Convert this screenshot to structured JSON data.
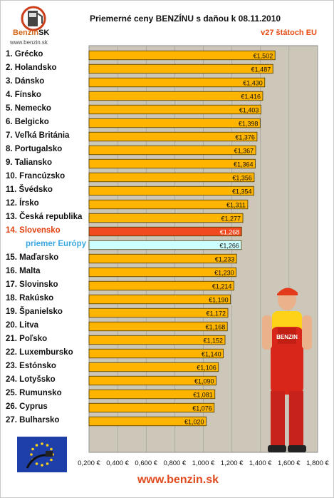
{
  "header": {
    "title": "Priemerné ceny BENZÍNU s daňou k 08.11.2010",
    "subtitle": "v27 štátoch EU",
    "logo_text": "Benzin",
    "logo_suffix": "SK",
    "logo_url": "www.benzin.sk"
  },
  "footer": {
    "url": "www.benzin.sk"
  },
  "colors": {
    "bar": "#ffb400",
    "bar_border": "#4a3a00",
    "highlight_bar": "#f04a1e",
    "average_bar": "#ccffff",
    "plot_bg": "#ccc7b8",
    "highlight_label": "#e2400f",
    "average_label": "#39a7e0"
  },
  "chart_data": {
    "type": "bar",
    "orientation": "horizontal",
    "value_prefix": "€",
    "xlim": [
      0.2,
      1.8
    ],
    "x_ticks": [
      "0,200 €",
      "0,400 €",
      "0,600 €",
      "0,800 €",
      "1,000 €",
      "1,200 €",
      "1,400 €",
      "1,600 €",
      "1,800 €"
    ],
    "grid": "vertical",
    "categories": [
      "1. Grécko",
      "2. Holandsko",
      "3. Dánsko",
      "4. Fínsko",
      "5. Nemecko",
      "6. Belgicko",
      "7. Veľká Británia",
      "8. Portugalsko",
      "9. Taliansko",
      "10. Francúzsko",
      "11. Švédsko",
      "12. Írsko",
      "13. Česká republika",
      "14. Slovensko",
      "priemer Európy",
      "15. Maďarsko",
      "16. Malta",
      "17. Slovinsko",
      "18. Rakúsko",
      "19. Španielsko",
      "20. Litva",
      "21. Poľsko",
      "22. Luxembursko",
      "23. Estónsko",
      "24. Lotyšsko",
      "25. Rumunsko",
      "26. Cyprus",
      "27. Bulharsko"
    ],
    "values": [
      1.502,
      1.487,
      1.43,
      1.416,
      1.403,
      1.398,
      1.376,
      1.367,
      1.364,
      1.356,
      1.354,
      1.311,
      1.277,
      1.268,
      1.266,
      1.233,
      1.23,
      1.214,
      1.19,
      1.172,
      1.168,
      1.152,
      1.14,
      1.106,
      1.09,
      1.081,
      1.076,
      1.02
    ],
    "value_labels": [
      "1,502",
      "1,487",
      "1,430",
      "1,416",
      "1,403",
      "1,398",
      "1,376",
      "1,367",
      "1,364",
      "1,356",
      "1,354",
      "1,311",
      "1,277",
      "1,268",
      "1,266",
      "1,233",
      "1,230",
      "1,214",
      "1,190",
      "1,172",
      "1,168",
      "1,152",
      "1,140",
      "1,106",
      "1,090",
      "1,081",
      "1,076",
      "1,020"
    ],
    "highlight_index": 13,
    "average_index": 14
  }
}
